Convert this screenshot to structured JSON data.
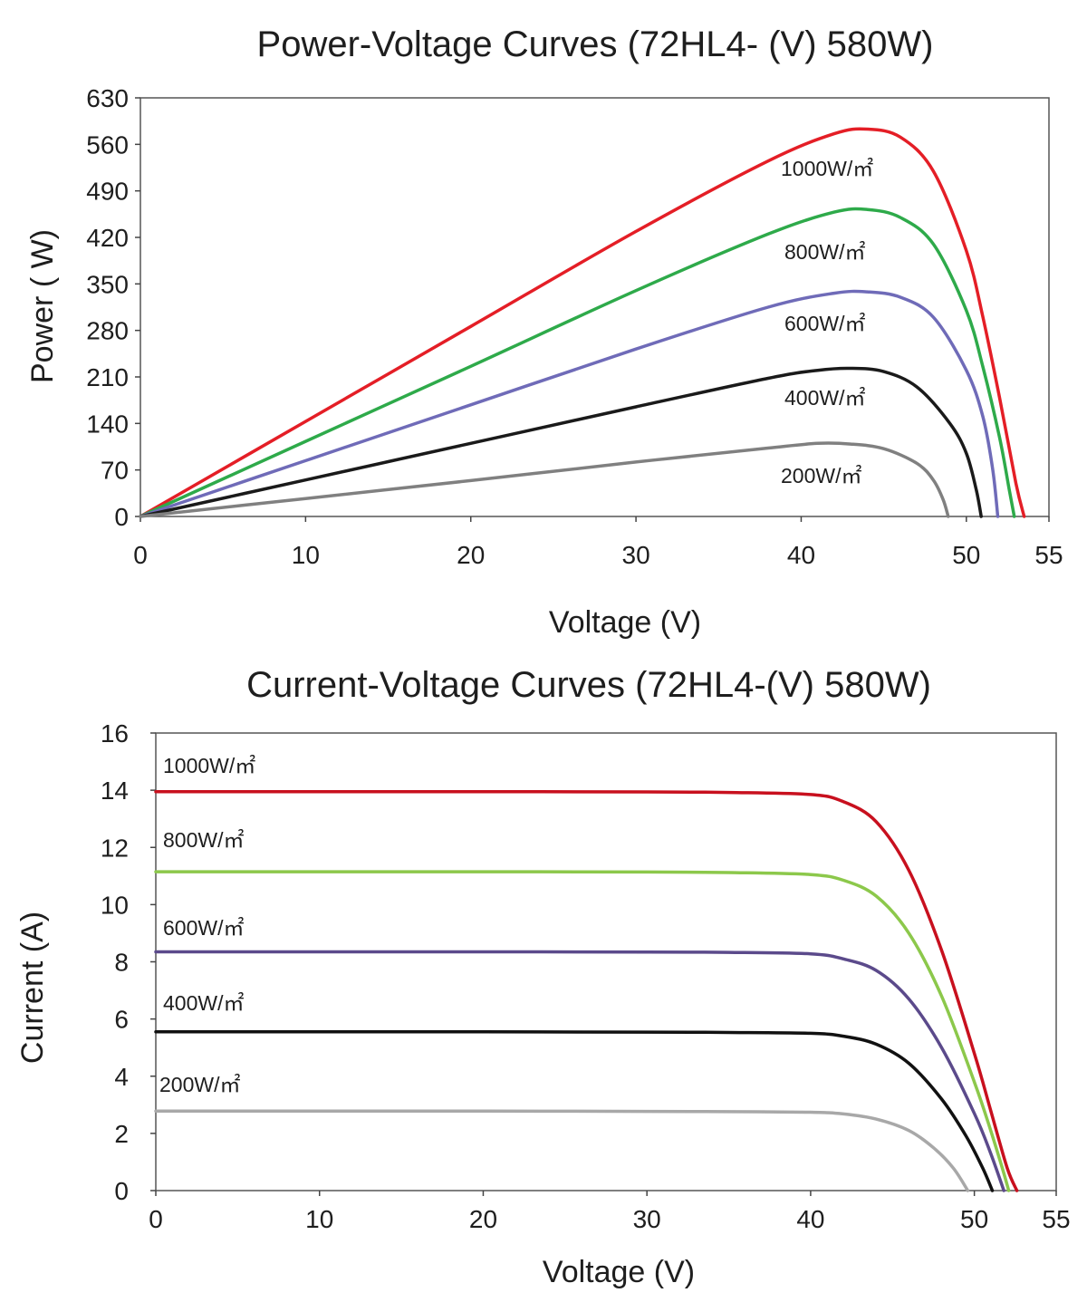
{
  "chart_data": [
    {
      "type": "line",
      "title": "Power-Voltage Curves (72HL4- (V)  580W)",
      "xlabel": "Voltage (V)",
      "ylabel": "Power ( W)",
      "xlim": [
        0,
        55
      ],
      "ylim": [
        0,
        630
      ],
      "xticks": [
        0,
        10,
        20,
        30,
        40,
        50,
        55
      ],
      "yticks": [
        0,
        70,
        140,
        210,
        280,
        350,
        420,
        490,
        560,
        630
      ],
      "grid": false,
      "series": [
        {
          "name": "1000W/m²",
          "label": "1000W/㎡",
          "color": "#e41e26",
          "x": [
            0,
            10,
            20,
            30,
            38,
            42,
            44,
            46,
            48,
            50,
            51,
            52,
            53,
            53.5
          ],
          "y": [
            0,
            143,
            286,
            429,
            535,
            576,
            583,
            571,
            520,
            400,
            300,
            180,
            50,
            0
          ]
        },
        {
          "name": "800W/m²",
          "label": "800W/㎡",
          "color": "#2eaa4a",
          "x": [
            0,
            10,
            20,
            30,
            38,
            42,
            44,
            46,
            48,
            50,
            51,
            52,
            52.6,
            52.9
          ],
          "y": [
            0,
            113,
            226,
            340,
            425,
            458,
            462,
            450,
            410,
            310,
            225,
            120,
            40,
            0
          ]
        },
        {
          "name": "600W/m²",
          "label": "600W/㎡",
          "color": "#6f6bb8",
          "x": [
            0,
            10,
            20,
            30,
            38,
            42,
            44,
            46,
            48,
            50,
            51,
            51.6,
            51.9
          ],
          "y": [
            0,
            84,
            168,
            252,
            315,
            336,
            338,
            330,
            300,
            220,
            150,
            70,
            0
          ]
        },
        {
          "name": "400W/m²",
          "label": "400W/㎡",
          "color": "#1a1a1a",
          "x": [
            0,
            10,
            20,
            30,
            38,
            41,
            43,
            45,
            47,
            49,
            50,
            50.6,
            50.9
          ],
          "y": [
            0,
            55,
            110,
            165,
            208,
            220,
            223,
            218,
            195,
            140,
            95,
            40,
            0
          ]
        },
        {
          "name": "200W/m²",
          "label": "200W/㎡",
          "color": "#808080",
          "x": [
            0,
            10,
            20,
            30,
            38,
            41,
            43,
            45,
            47,
            48,
            48.6,
            48.9
          ],
          "y": [
            0,
            27,
            54,
            82,
            103,
            110,
            109,
            102,
            80,
            55,
            25,
            0
          ]
        }
      ]
    },
    {
      "type": "line",
      "title": "Current-Voltage Curves (72HL4-(V) 580W)",
      "xlabel": "Voltage (V)",
      "ylabel": "Current (A)",
      "xlim": [
        0,
        55
      ],
      "ylim": [
        0,
        16
      ],
      "xticks": [
        0,
        10,
        20,
        30,
        40,
        50,
        55
      ],
      "yticks": [
        0,
        2,
        4,
        6,
        8,
        10,
        12,
        14,
        16
      ],
      "grid": false,
      "series": [
        {
          "name": "1000W/m²",
          "label": "1000W/㎡",
          "color": "#c8101e",
          "x": [
            0,
            10,
            20,
            30,
            35,
            40,
            42,
            44,
            46,
            48,
            50,
            51,
            52,
            52.6
          ],
          "y": [
            13.95,
            13.95,
            13.95,
            13.94,
            13.92,
            13.85,
            13.6,
            12.9,
            11.2,
            8.4,
            4.8,
            2.8,
            0.8,
            0
          ]
        },
        {
          "name": "800W/m²",
          "label": "800W/㎡",
          "color": "#8cc84b",
          "x": [
            0,
            10,
            20,
            30,
            35,
            40,
            42,
            44,
            46,
            48,
            50,
            51,
            51.7,
            52.1
          ],
          "y": [
            11.15,
            11.15,
            11.15,
            11.14,
            11.12,
            11.05,
            10.85,
            10.3,
            9.0,
            6.8,
            3.8,
            2.1,
            0.8,
            0
          ]
        },
        {
          "name": "600W/m²",
          "label": "600W/㎡",
          "color": "#5b4a8b",
          "x": [
            0,
            10,
            20,
            30,
            35,
            40,
            42,
            44,
            46,
            48,
            50,
            51,
            51.8
          ],
          "y": [
            8.35,
            8.35,
            8.35,
            8.34,
            8.33,
            8.28,
            8.1,
            7.7,
            6.7,
            5.0,
            2.7,
            1.3,
            0
          ]
        },
        {
          "name": "400W/m²",
          "label": "400W/㎡",
          "color": "#111111",
          "x": [
            0,
            10,
            20,
            30,
            35,
            40,
            42,
            44,
            46,
            48,
            49.5,
            50.5,
            51.1
          ],
          "y": [
            5.55,
            5.55,
            5.55,
            5.54,
            5.53,
            5.5,
            5.4,
            5.12,
            4.45,
            3.2,
            1.9,
            0.8,
            0
          ]
        },
        {
          "name": "200W/m²",
          "label": "200W/㎡",
          "color": "#a8a8a8",
          "x": [
            0,
            10,
            20,
            30,
            35,
            40,
            42,
            44,
            46,
            47.5,
            48.7,
            49.6
          ],
          "y": [
            2.78,
            2.78,
            2.78,
            2.77,
            2.76,
            2.74,
            2.68,
            2.5,
            2.1,
            1.5,
            0.8,
            0
          ]
        }
      ]
    }
  ]
}
